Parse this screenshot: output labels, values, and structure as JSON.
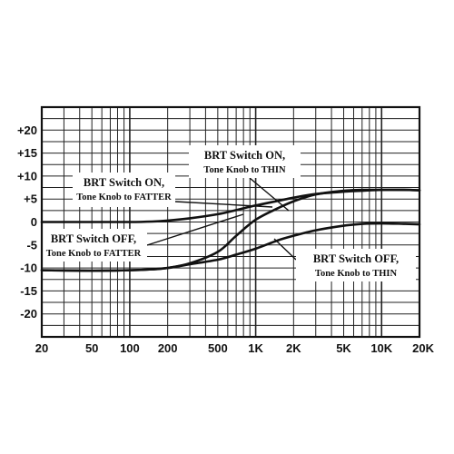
{
  "chart_data": {
    "type": "line",
    "x_scale": "log",
    "xlim": [
      20,
      20000
    ],
    "ylim": [
      -25,
      25
    ],
    "grid": true,
    "title": "",
    "xlabel": "",
    "ylabel": "",
    "x_ticks": [
      {
        "value": 20,
        "label": "20"
      },
      {
        "value": 50,
        "label": "50"
      },
      {
        "value": 100,
        "label": "100"
      },
      {
        "value": 200,
        "label": "200"
      },
      {
        "value": 500,
        "label": "500"
      },
      {
        "value": 1000,
        "label": "1K"
      },
      {
        "value": 2000,
        "label": "2K"
      },
      {
        "value": 5000,
        "label": "5K"
      },
      {
        "value": 10000,
        "label": "10K"
      },
      {
        "value": 20000,
        "label": "20K"
      }
    ],
    "y_ticks": [
      {
        "value": 20,
        "label": "+20"
      },
      {
        "value": 15,
        "label": "+15"
      },
      {
        "value": 10,
        "label": "+10"
      },
      {
        "value": 5,
        "label": "+5"
      },
      {
        "value": 0,
        "label": "0"
      },
      {
        "value": -5,
        "label": "-5"
      },
      {
        "value": -10,
        "label": "-10"
      },
      {
        "value": -15,
        "label": "-15"
      },
      {
        "value": -20,
        "label": "-20"
      }
    ],
    "series": [
      {
        "x": [
          20,
          50,
          100,
          150,
          200,
          300,
          500,
          700,
          1000,
          1500,
          2000,
          3000,
          5000,
          7000,
          10000,
          15000,
          20000
        ],
        "y": [
          0,
          0,
          0,
          0.1,
          0.3,
          0.8,
          1.7,
          2.6,
          3.6,
          4.6,
          5.3,
          6.1,
          6.6,
          6.8,
          7.0,
          7.0,
          6.9
        ]
      },
      {
        "x": [
          20,
          50,
          100,
          150,
          200,
          300,
          500,
          700,
          1000,
          1500,
          2000,
          3000,
          5000,
          7000,
          10000,
          15000,
          20000
        ],
        "y": [
          -10.5,
          -10.6,
          -10.5,
          -10.3,
          -10.0,
          -9.0,
          -6.5,
          -3.0,
          0.5,
          3.0,
          4.5,
          6.0,
          6.8,
          7.0,
          7.0,
          7.0,
          6.9
        ]
      },
      {
        "x": [
          20,
          50,
          100,
          150,
          200,
          300,
          500,
          700,
          1000,
          1500,
          2000,
          3000,
          5000,
          7000,
          10000,
          15000,
          20000
        ],
        "y": [
          -10.5,
          -10.6,
          -10.5,
          -10.3,
          -10.0,
          -9.2,
          -8.2,
          -7.1,
          -5.8,
          -4.0,
          -3.0,
          -1.8,
          -0.8,
          -0.4,
          -0.3,
          -0.4,
          -0.5
        ]
      }
    ],
    "annotations": [
      {
        "line1": "BRT Switch ON,",
        "line2": "Tone Knob to FATTER"
      },
      {
        "line1": "BRT Switch ON,",
        "line2": "Tone Knob to THIN"
      },
      {
        "line1": "BRT Switch OFF,",
        "line2": "Tone Knob to FATTER"
      },
      {
        "line1": "BRT Switch OFF,",
        "line2": "Tone Knob to THIN"
      }
    ]
  }
}
